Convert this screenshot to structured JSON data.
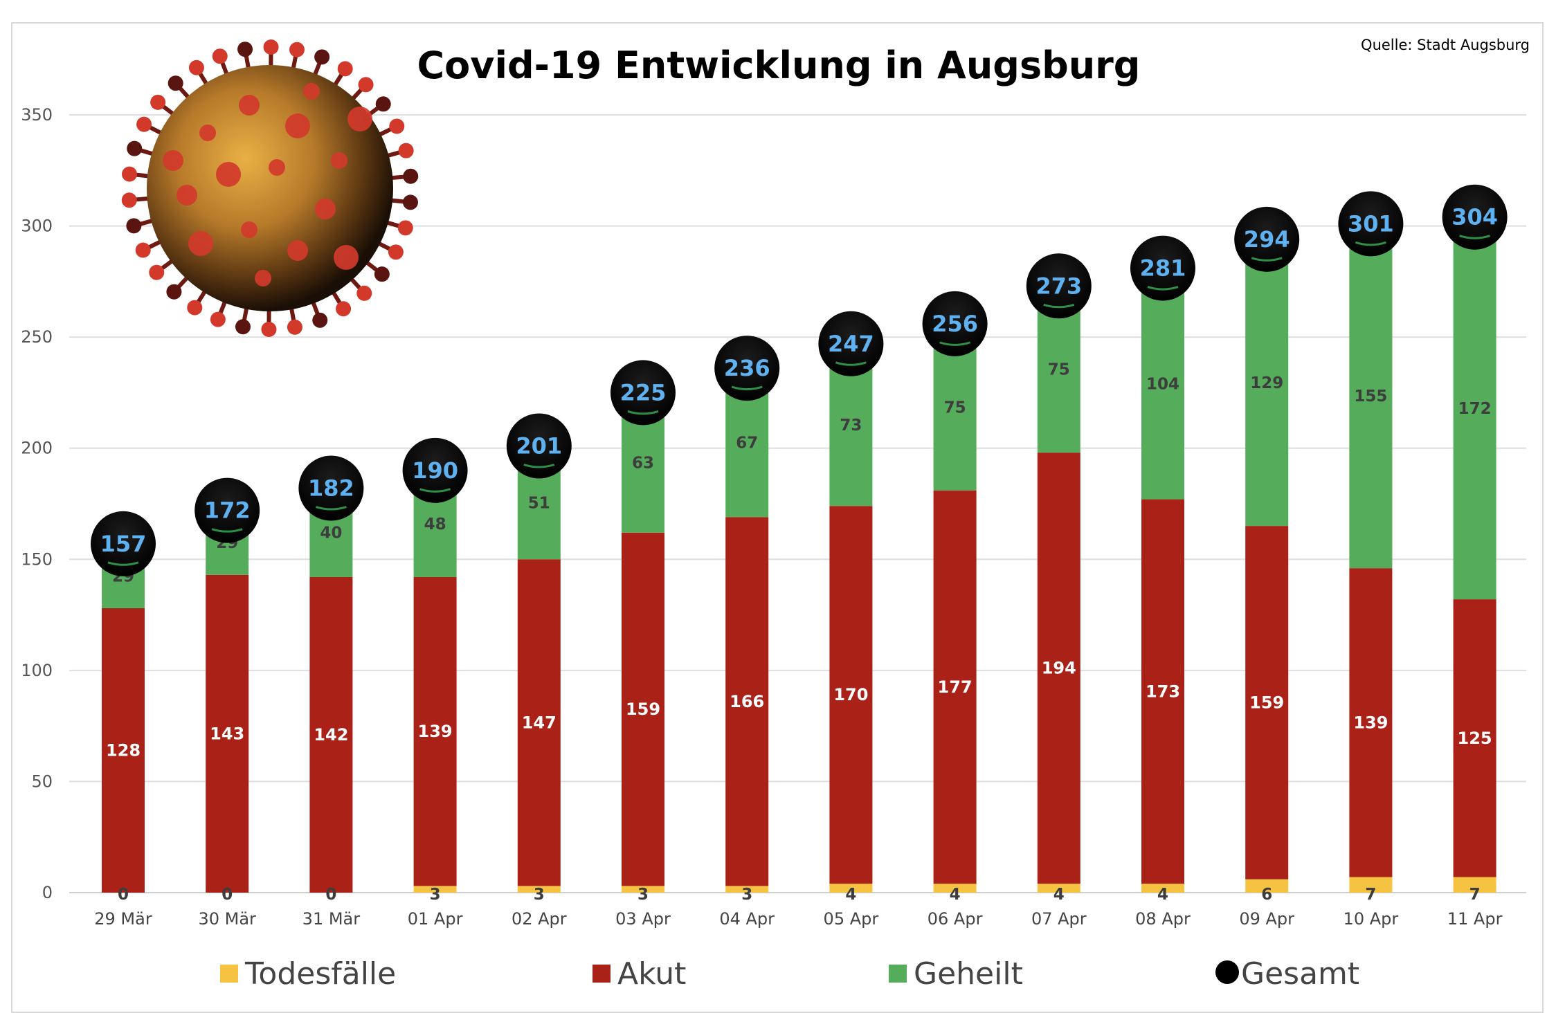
{
  "chart_data": {
    "type": "bar",
    "stacked": true,
    "title": "Covid-19 Entwicklung in Augsburg",
    "source": "Quelle: Stadt Augsburg",
    "categories": [
      "29 Mär",
      "30 Mär",
      "31 Mär",
      "01 Apr",
      "02 Apr",
      "03 Apr",
      "04 Apr",
      "05 Apr",
      "06 Apr",
      "07 Apr",
      "08 Apr",
      "09 Apr",
      "10 Apr",
      "11 Apr"
    ],
    "series": [
      {
        "name": "Todesfälle",
        "color": "#f5c242",
        "values": [
          0,
          0,
          0,
          3,
          3,
          3,
          3,
          4,
          4,
          4,
          4,
          6,
          7,
          7
        ]
      },
      {
        "name": "Akut",
        "color": "#aa2117",
        "values": [
          128,
          143,
          142,
          139,
          147,
          159,
          166,
          170,
          177,
          194,
          173,
          159,
          139,
          125
        ]
      },
      {
        "name": "Geheilt",
        "color": "#55ad5b",
        "values": [
          29,
          29,
          40,
          48,
          51,
          63,
          67,
          73,
          75,
          75,
          104,
          129,
          155,
          172
        ]
      }
    ],
    "totals": {
      "name": "Gesamt",
      "color": "#000000",
      "values": [
        157,
        172,
        182,
        190,
        201,
        225,
        236,
        247,
        256,
        273,
        281,
        294,
        301,
        304
      ]
    },
    "yticks": [
      0,
      50,
      100,
      150,
      200,
      250,
      300,
      350
    ],
    "ylim": [
      0,
      350
    ],
    "grid": true,
    "legend_position": "bottom",
    "xlabel": "",
    "ylabel": ""
  },
  "decoration": {
    "image": "coronavirus-illustration"
  }
}
